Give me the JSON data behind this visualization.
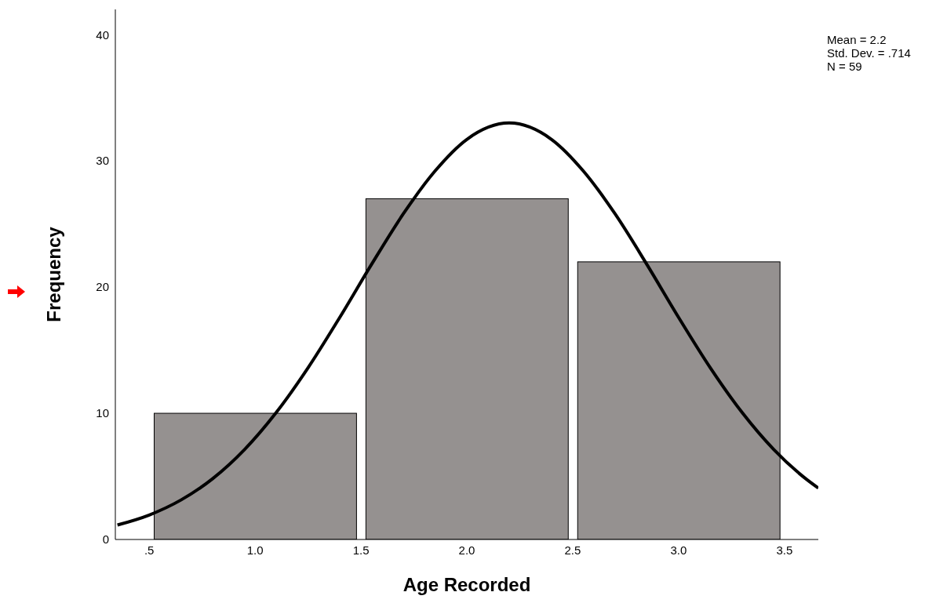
{
  "chart_data": {
    "type": "histogram",
    "xlabel": "Age Recorded",
    "ylabel": "Frequency",
    "bins": [
      0.5,
      1.5,
      2.5,
      3.5
    ],
    "values": [
      10,
      27,
      22
    ],
    "color": "#959190",
    "series": [
      {
        "type": "line",
        "color": "#000000",
        "x": [
          0.35,
          0.5,
          0.65,
          0.8,
          0.95,
          1.1,
          1.25,
          1.4,
          1.55,
          1.7,
          1.85,
          2.0,
          2.2,
          2.4,
          2.55,
          2.7,
          2.85,
          3.0,
          3.15,
          3.3,
          3.45,
          3.6,
          3.66
        ],
        "values": [
          1.15,
          1.94,
          3.13,
          4.82,
          7.12,
          10.06,
          13.6,
          17.6,
          21.8,
          25.8,
          29.2,
          31.7,
          33.0,
          31.7,
          29.2,
          25.8,
          21.8,
          17.6,
          13.6,
          10.06,
          7.12,
          4.82,
          4.07
        ]
      }
    ],
    "xlim": [
      0.34,
      3.66
    ],
    "xticks": [
      {
        "value": 0.5,
        "label": ".5"
      },
      {
        "value": 1,
        "label": "1.0"
      },
      {
        "value": 1.5,
        "label": "1.5"
      },
      {
        "value": 2,
        "label": "2.0"
      },
      {
        "value": 2.5,
        "label": "2.5"
      },
      {
        "value": 3,
        "label": "3.0"
      },
      {
        "value": 3.5,
        "label": "3.5"
      }
    ],
    "ylim": [
      0,
      42
    ],
    "yticks": [
      0,
      10,
      20,
      30,
      40
    ],
    "grid": false,
    "legend": false,
    "marker": "none",
    "line_style": "solid",
    "annotations": [
      "Mean = 2.2",
      "Std. Dev. = .714",
      "N = 59"
    ]
  }
}
